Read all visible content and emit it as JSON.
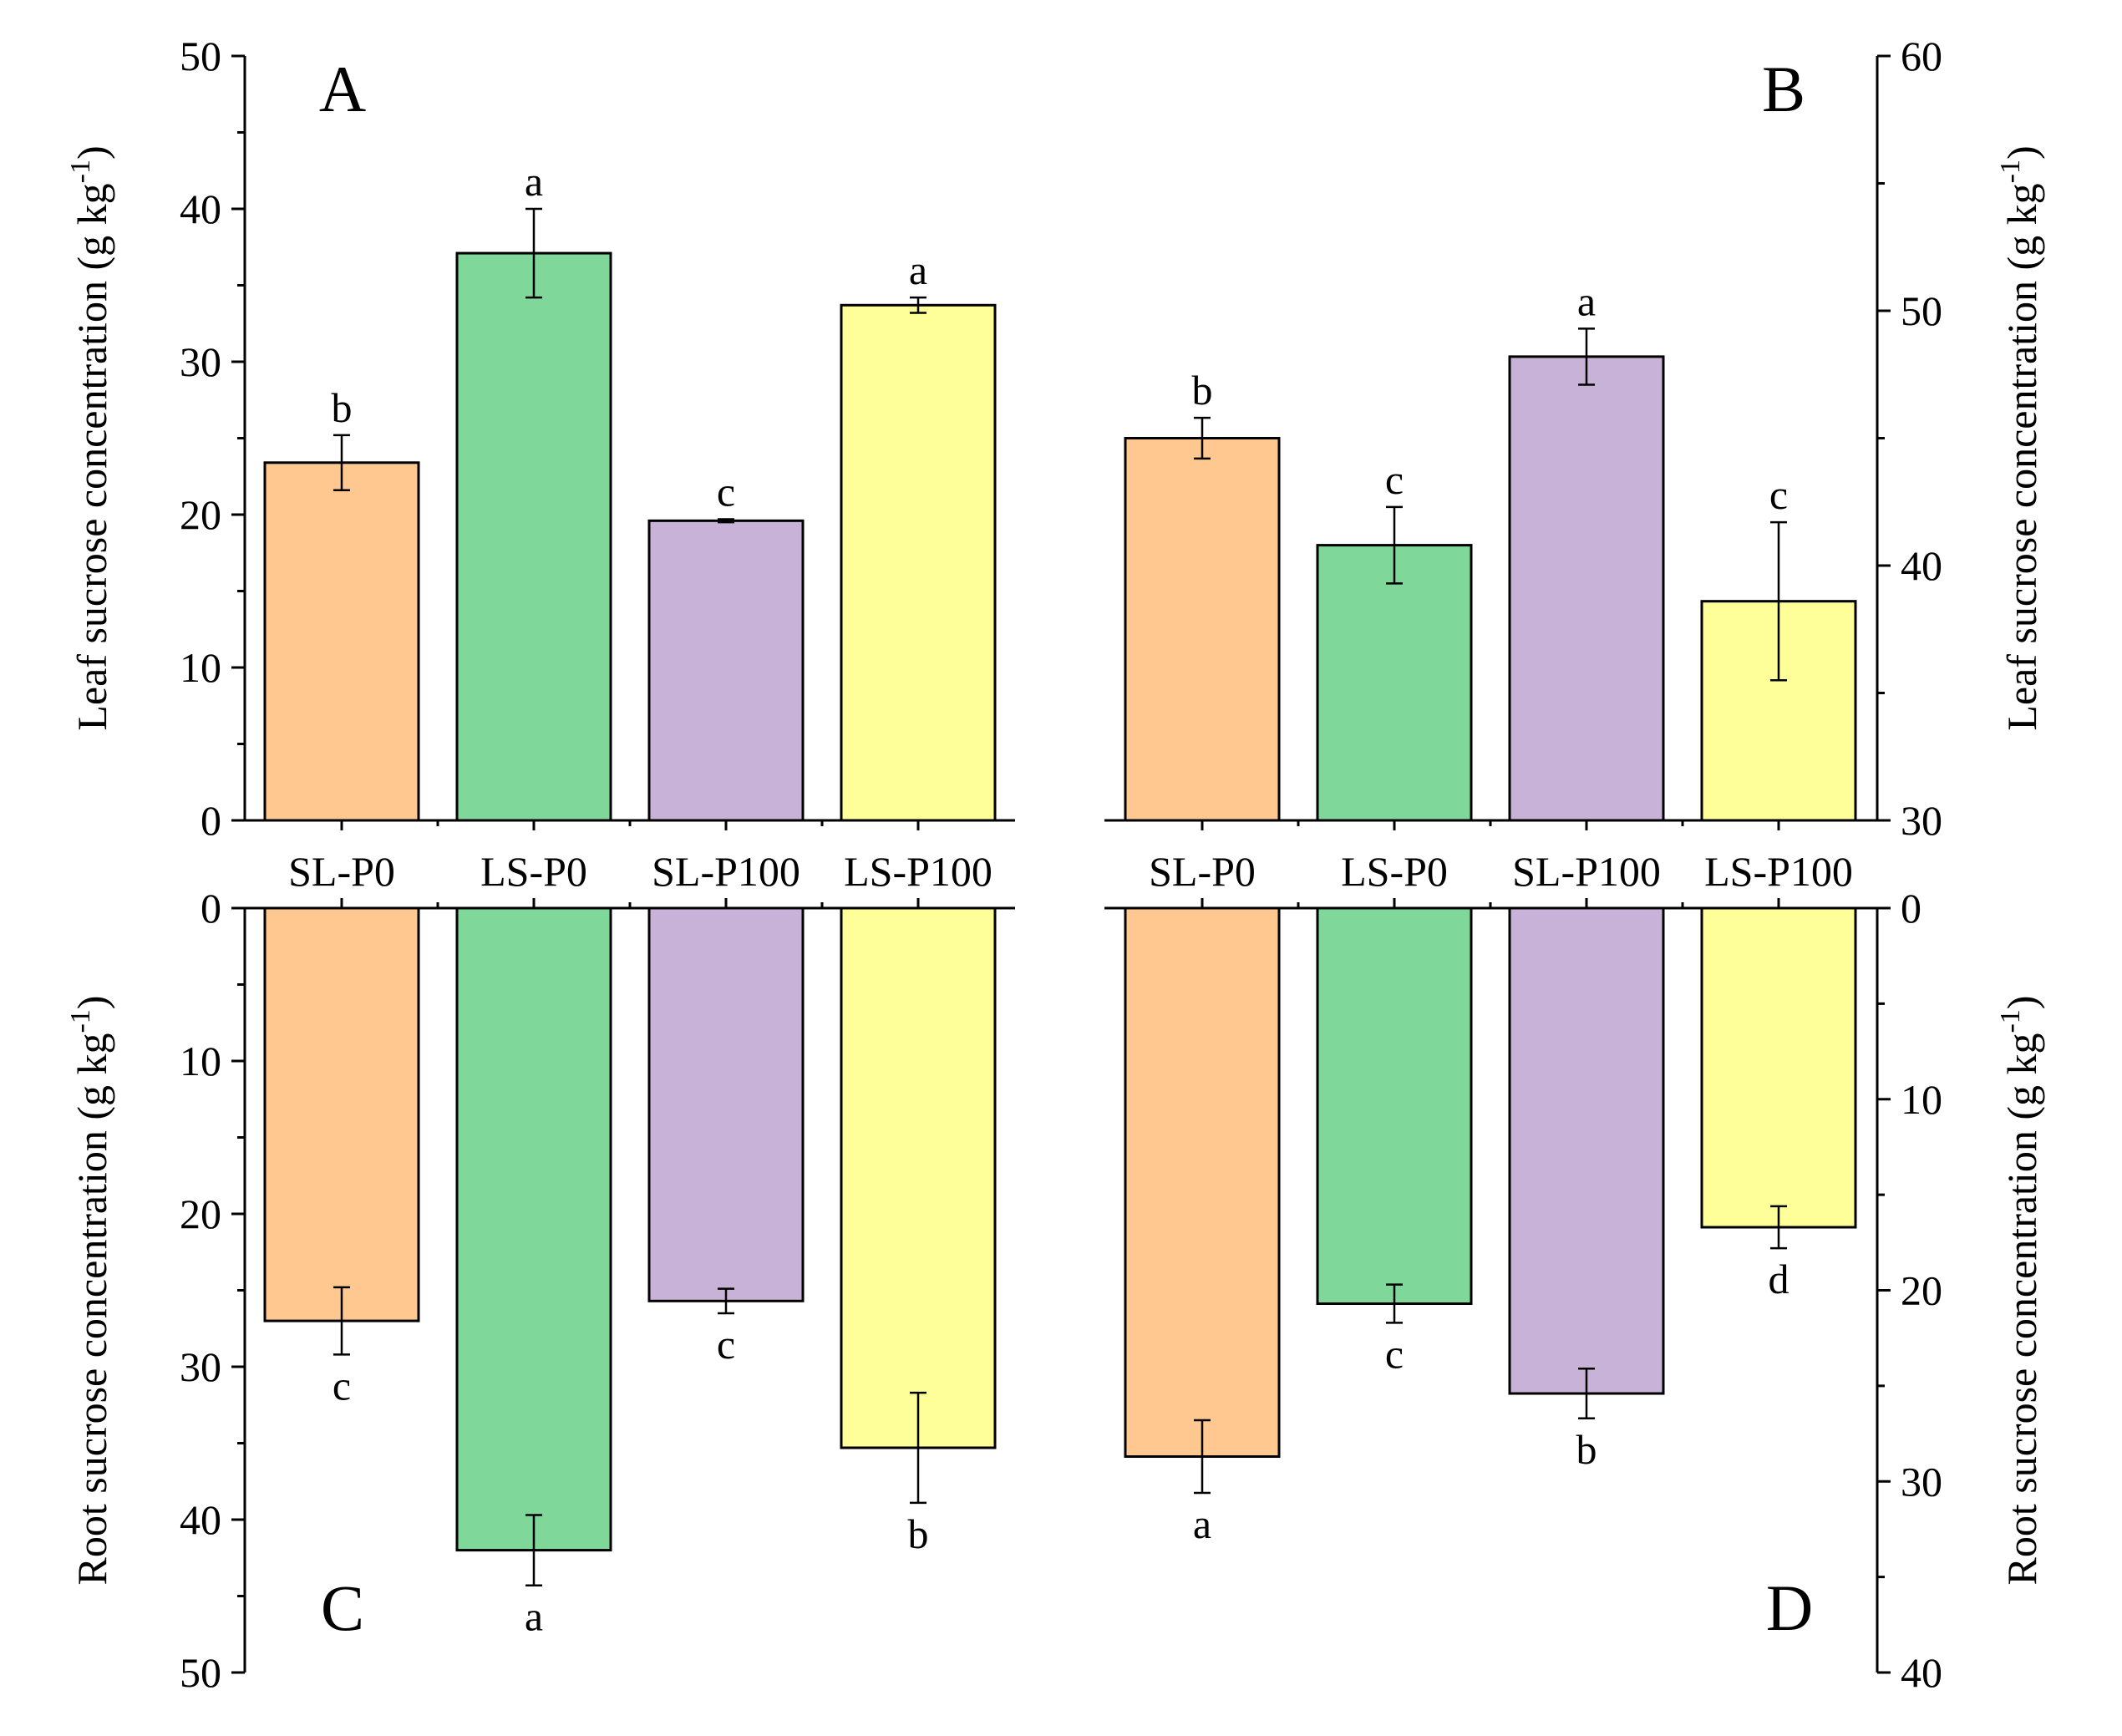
{
  "colors": [
    "#FFC891",
    "#7FD89A",
    "#C8B2D7",
    "#FFFF99"
  ],
  "chart_data": [
    {
      "panel": "A",
      "type": "bar",
      "categories": [
        "SL-P0",
        "LS-P0",
        "SL-P100",
        "LS-P100"
      ],
      "values": [
        23.4,
        37.1,
        19.6,
        33.7
      ],
      "errors": [
        1.8,
        2.9,
        0.1,
        0.5
      ],
      "letters": [
        "b",
        "a",
        "c",
        "a"
      ],
      "ylabel": "Leaf sucrose concentration (g kg",
      "ylabel_sup": "-1",
      "ylabel_close": ")",
      "ylim": [
        0,
        50
      ],
      "ticks": [
        "0",
        "10",
        "20",
        "30",
        "40",
        "50"
      ],
      "axis_side": "left"
    },
    {
      "panel": "B",
      "type": "bar",
      "categories": [
        "SL-P0",
        "LS-P0",
        "SL-P100",
        "LS-P100"
      ],
      "values": [
        45.0,
        40.8,
        48.2,
        38.6
      ],
      "errors": [
        0.8,
        1.5,
        1.1,
        3.1
      ],
      "letters": [
        "b",
        "c",
        "a",
        "c"
      ],
      "ylabel": "Leaf sucrose concentration (g kg",
      "ylabel_sup": "-1",
      "ylabel_close": ")",
      "ylim": [
        30,
        60
      ],
      "ticks": [
        "30",
        "40",
        "50",
        "60"
      ],
      "axis_side": "right"
    },
    {
      "panel": "C",
      "type": "bar",
      "categories": [
        "SL-P0",
        "LS-P0",
        "SL-P100",
        "LS-P100"
      ],
      "values": [
        27.0,
        42.0,
        25.7,
        35.3
      ],
      "errors": [
        2.2,
        2.3,
        0.8,
        3.6
      ],
      "letters": [
        "c",
        "a",
        "c",
        "b"
      ],
      "ylabel": "Root sucrose concentration (g kg",
      "ylabel_sup": "-1",
      "ylabel_close": ")",
      "ylim": [
        0,
        50
      ],
      "ticks": [
        "0",
        "10",
        "20",
        "30",
        "40",
        "50"
      ],
      "axis_side": "left",
      "inverted": true
    },
    {
      "panel": "D",
      "type": "bar",
      "categories": [
        "SL-P0",
        "LS-P0",
        "SL-P100",
        "LS-P100"
      ],
      "values": [
        28.7,
        20.7,
        25.4,
        16.7
      ],
      "errors": [
        1.9,
        1.0,
        1.3,
        1.1
      ],
      "letters": [
        "a",
        "c",
        "b",
        "d"
      ],
      "ylabel": "Root sucrose concentration (g kg",
      "ylabel_sup": "-1",
      "ylabel_close": ")",
      "ylim": [
        0,
        40
      ],
      "ticks": [
        "0",
        "10",
        "20",
        "30",
        "40"
      ],
      "axis_side": "right",
      "inverted": true
    }
  ]
}
